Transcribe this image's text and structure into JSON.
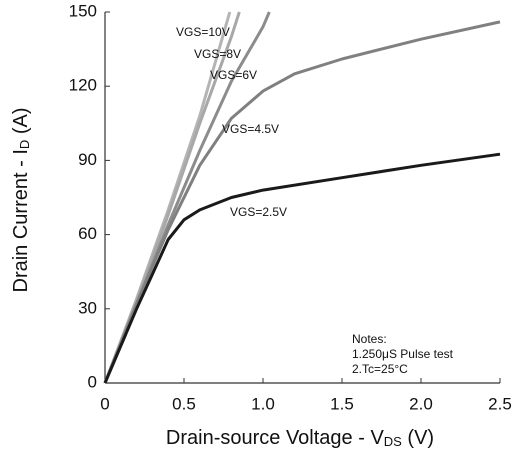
{
  "chart_data": {
    "type": "line",
    "xlabel": [
      "Drain-source Voltage - V",
      "DS",
      " (V)"
    ],
    "ylabel": [
      "Drain Current - I",
      "D",
      " (A)"
    ],
    "xlim": [
      0,
      2.5
    ],
    "xticks": [
      0,
      0.5,
      {
        "value": 1,
        "label": "1.0"
      },
      1.5,
      {
        "value": 2,
        "label": "2.0"
      },
      2.5
    ],
    "ylim": [
      0,
      150
    ],
    "yticks": [
      0,
      30,
      60,
      90,
      120,
      150
    ],
    "annotations": [
      "Notes:",
      "1.250μS Pulse test",
      "2.Tc=25°C"
    ],
    "series": [
      {
        "name": "VGS=10V",
        "color": "#b4b4b4",
        "x": [
          0,
          0.2,
          0.4,
          0.6,
          0.79
        ],
        "values": [
          0,
          34,
          70,
          108,
          150
        ]
      },
      {
        "name": "VGS=8V",
        "color": "#a8a8a8",
        "x": [
          0,
          0.2,
          0.4,
          0.6,
          0.8,
          0.85
        ],
        "values": [
          0,
          33,
          68,
          105,
          140,
          150
        ]
      },
      {
        "name": "VGS=6V",
        "color": "#8c8c8c",
        "x": [
          0,
          0.2,
          0.4,
          0.6,
          0.8,
          1.0,
          1.04
        ],
        "values": [
          0,
          32,
          64,
          94,
          122,
          144,
          150
        ]
      },
      {
        "name": "VGS=4.5V",
        "color": "#808080",
        "x": [
          0,
          0.2,
          0.4,
          0.6,
          0.8,
          1.0,
          1.2,
          1.5,
          2.0,
          2.5
        ],
        "values": [
          0,
          32,
          62,
          88,
          107,
          118,
          125,
          131,
          139,
          146
        ]
      },
      {
        "name": "VGS=2.5V",
        "color": "#1a1a1a",
        "x": [
          0,
          0.1,
          0.2,
          0.3,
          0.4,
          0.5,
          0.6,
          0.8,
          1.0,
          1.5,
          2.0,
          2.5
        ],
        "values": [
          0,
          15,
          30,
          44,
          58,
          66,
          70,
          75,
          78,
          83,
          88,
          92.5
        ]
      }
    ]
  }
}
